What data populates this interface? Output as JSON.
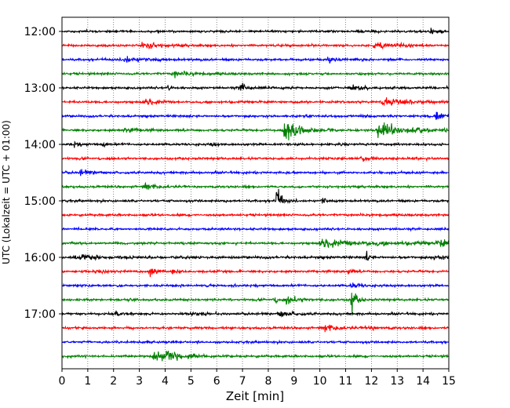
{
  "chart_data": {
    "type": "line",
    "subtype": "helicorder",
    "xlabel": "Zeit  [min]",
    "ylabel": "UTC (Lokalzeit = UTC + 01:00)",
    "xlim": [
      0,
      15
    ],
    "xticks": [
      0,
      1,
      2,
      3,
      4,
      5,
      6,
      7,
      8,
      9,
      10,
      11,
      12,
      13,
      14,
      15
    ],
    "yticks": [
      {
        "time": "12:00",
        "trace_index": 0
      },
      {
        "time": "13:00",
        "trace_index": 4
      },
      {
        "time": "14:00",
        "trace_index": 8
      },
      {
        "time": "15:00",
        "trace_index": 12
      },
      {
        "time": "16:00",
        "trace_index": 16
      },
      {
        "time": "17:00",
        "trace_index": 20
      }
    ],
    "trace_interval_min": 15,
    "grid": {
      "vertical": true,
      "style": "dotted"
    },
    "series_colors": [
      "#000000",
      "#ff0000",
      "#0000ff",
      "#008000"
    ],
    "traces": [
      {
        "start": "12:00",
        "color": "#000000",
        "noise": 0.45,
        "events": [
          {
            "t": 14.3,
            "a": 1.1,
            "d": 0.4
          }
        ]
      },
      {
        "start": "12:15",
        "color": "#ff0000",
        "noise": 0.45,
        "events": [
          {
            "t": 3.1,
            "a": 1.4,
            "d": 0.6
          },
          {
            "t": 12.1,
            "a": 1.2,
            "d": 0.8
          }
        ]
      },
      {
        "start": "12:30",
        "color": "#0000ff",
        "noise": 0.45,
        "events": [
          {
            "t": 2.4,
            "a": 1.1,
            "d": 0.8
          },
          {
            "t": 10.3,
            "a": 0.9,
            "d": 0.5
          }
        ]
      },
      {
        "start": "12:45",
        "color": "#008000",
        "noise": 0.45,
        "events": [
          {
            "t": 4.3,
            "a": 1.0,
            "d": 0.6
          }
        ]
      },
      {
        "start": "13:00",
        "color": "#000000",
        "noise": 0.45,
        "events": [
          {
            "t": 4.1,
            "a": 1.8,
            "d": 0.1
          },
          {
            "t": 6.9,
            "a": 2.0,
            "d": 0.3
          },
          {
            "t": 11.2,
            "a": 1.0,
            "d": 0.4
          }
        ]
      },
      {
        "start": "13:15",
        "color": "#ff0000",
        "noise": 0.45,
        "events": [
          {
            "t": 3.2,
            "a": 1.0,
            "d": 0.6
          },
          {
            "t": 12.3,
            "a": 1.2,
            "d": 1.2
          }
        ]
      },
      {
        "start": "13:30",
        "color": "#0000ff",
        "noise": 0.45,
        "events": [
          {
            "t": 14.5,
            "a": 1.3,
            "d": 0.4
          }
        ]
      },
      {
        "start": "13:45",
        "color": "#008000",
        "noise": 0.45,
        "events": [
          {
            "t": 2.4,
            "a": 1.3,
            "d": 0.4
          },
          {
            "t": 8.6,
            "a": 4.2,
            "d": 0.6
          },
          {
            "t": 12.2,
            "a": 2.8,
            "d": 1.0
          }
        ]
      },
      {
        "start": "14:00",
        "color": "#000000",
        "noise": 0.45,
        "events": [
          {
            "t": 0.4,
            "a": 1.5,
            "d": 0.2
          },
          {
            "t": 1.6,
            "a": 1.6,
            "d": 0.1
          },
          {
            "t": 5.8,
            "a": 1.5,
            "d": 0.1
          }
        ]
      },
      {
        "start": "14:15",
        "color": "#ff0000",
        "noise": 0.45,
        "events": [
          {
            "t": 11.6,
            "a": 0.9,
            "d": 0.5
          }
        ]
      },
      {
        "start": "14:30",
        "color": "#0000ff",
        "noise": 0.45,
        "events": [
          {
            "t": 0.7,
            "a": 1.0,
            "d": 0.5
          }
        ]
      },
      {
        "start": "14:45",
        "color": "#008000",
        "noise": 0.45,
        "events": [
          {
            "t": 3.2,
            "a": 1.2,
            "d": 0.5
          }
        ]
      },
      {
        "start": "15:00",
        "color": "#000000",
        "noise": 0.45,
        "events": [
          {
            "t": 8.3,
            "a": 6.5,
            "d": 0.15
          },
          {
            "t": 10.1,
            "a": 2.3,
            "d": 0.1
          },
          {
            "t": 6.3,
            "a": 1.0,
            "d": 0.1
          }
        ]
      },
      {
        "start": "15:15",
        "color": "#ff0000",
        "noise": 0.45,
        "events": []
      },
      {
        "start": "15:30",
        "color": "#0000ff",
        "noise": 0.45,
        "events": []
      },
      {
        "start": "15:45",
        "color": "#008000",
        "noise": 0.45,
        "events": [
          {
            "t": 10.0,
            "a": 1.5,
            "d": 2.2
          },
          {
            "t": 14.6,
            "a": 1.6,
            "d": 0.6
          }
        ]
      },
      {
        "start": "16:00",
        "color": "#000000",
        "noise": 0.5,
        "events": [
          {
            "t": 0.5,
            "a": 1.2,
            "d": 0.8
          },
          {
            "t": 11.8,
            "a": 2.6,
            "d": 0.1
          },
          {
            "t": 14.4,
            "a": 0.9,
            "d": 0.3
          }
        ]
      },
      {
        "start": "16:15",
        "color": "#ff0000",
        "noise": 0.45,
        "events": [
          {
            "t": 1.6,
            "a": 1.3,
            "d": 0.1
          },
          {
            "t": 3.4,
            "a": 1.4,
            "d": 0.2
          },
          {
            "t": 4.3,
            "a": 1.5,
            "d": 0.1
          },
          {
            "t": 11.1,
            "a": 2.0,
            "d": 0.1
          }
        ]
      },
      {
        "start": "16:30",
        "color": "#0000ff",
        "noise": 0.45,
        "events": [
          {
            "t": 11.2,
            "a": 1.3,
            "d": 0.3
          }
        ]
      },
      {
        "start": "16:45",
        "color": "#008000",
        "noise": 0.45,
        "events": [
          {
            "t": 8.2,
            "a": 1.3,
            "d": 0.2
          },
          {
            "t": 8.7,
            "a": 1.2,
            "d": 0.5
          },
          {
            "t": 11.2,
            "a": 7.5,
            "d": 0.15
          }
        ]
      },
      {
        "start": "17:00",
        "color": "#000000",
        "noise": 0.45,
        "events": [
          {
            "t": 8.4,
            "a": 2.0,
            "d": 0.4
          },
          {
            "t": 2.1,
            "a": 1.0,
            "d": 0.1
          },
          {
            "t": 4.9,
            "a": 0.9,
            "d": 0.3
          }
        ]
      },
      {
        "start": "17:15",
        "color": "#ff0000",
        "noise": 0.45,
        "events": [
          {
            "t": 10.2,
            "a": 1.5,
            "d": 0.5
          },
          {
            "t": 11.8,
            "a": 0.9,
            "d": 0.4
          }
        ]
      },
      {
        "start": "17:30",
        "color": "#0000ff",
        "noise": 0.45,
        "events": []
      },
      {
        "start": "17:45",
        "color": "#008000",
        "noise": 0.45,
        "events": [
          {
            "t": 3.5,
            "a": 2.1,
            "d": 0.8
          },
          {
            "t": 4.1,
            "a": 1.5,
            "d": 0.5
          }
        ]
      }
    ]
  }
}
